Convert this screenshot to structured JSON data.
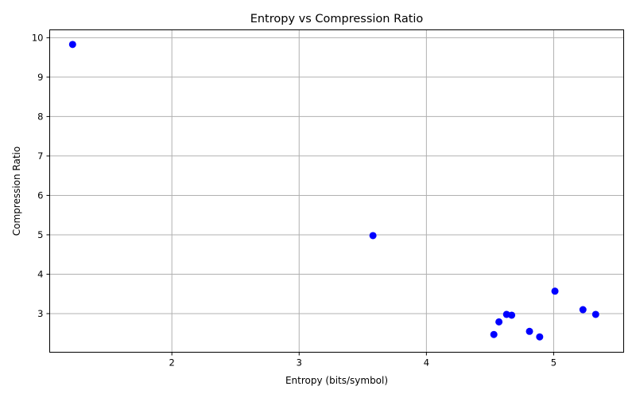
{
  "chart_data": {
    "type": "scatter",
    "title": "Entropy vs Compression Ratio",
    "xlabel": "Entropy (bits/symbol)",
    "ylabel": "Compression Ratio",
    "xlim": [
      1.04,
      5.55
    ],
    "ylim": [
      2.02,
      10.2
    ],
    "xticks": [
      2,
      3,
      4,
      5
    ],
    "yticks": [
      3,
      4,
      5,
      6,
      7,
      8,
      9,
      10
    ],
    "grid": true,
    "marker_color": "#0000ff",
    "points": [
      {
        "x": 1.22,
        "y": 9.83
      },
      {
        "x": 3.58,
        "y": 4.98
      },
      {
        "x": 5.01,
        "y": 3.57
      },
      {
        "x": 5.23,
        "y": 3.1
      },
      {
        "x": 5.33,
        "y": 2.98
      },
      {
        "x": 4.63,
        "y": 2.98
      },
      {
        "x": 4.67,
        "y": 2.96
      },
      {
        "x": 4.57,
        "y": 2.79
      },
      {
        "x": 4.81,
        "y": 2.55
      },
      {
        "x": 4.53,
        "y": 2.47
      },
      {
        "x": 4.89,
        "y": 2.41
      }
    ]
  }
}
